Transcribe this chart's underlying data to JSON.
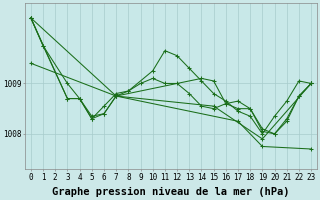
{
  "background_color": "#cce8e8",
  "plot_bg_color": "#c8e8e8",
  "grid_color": "#a8cccc",
  "line_color": "#1a6e1a",
  "xlabel": "Graphe pression niveau de la mer (hPa)",
  "xlabel_fontsize": 7.5,
  "ylabel_ticks": [
    1008.0,
    1009.0
  ],
  "xlim": [
    -0.5,
    23.5
  ],
  "ylim": [
    1007.3,
    1010.6
  ],
  "ytick_labels": [
    "1008",
    "1009"
  ],
  "xtick_labels": [
    "0",
    "1",
    "2",
    "3",
    "4",
    "5",
    "6",
    "7",
    "8",
    "9",
    "10",
    "11",
    "12",
    "13",
    "14",
    "15",
    "16",
    "17",
    "18",
    "19",
    "20",
    "21",
    "22",
    "23"
  ],
  "series": [
    {
      "x": [
        0,
        7,
        17,
        19,
        23
      ],
      "y": [
        1010.3,
        1008.75,
        1008.25,
        1007.75,
        1007.7
      ]
    },
    {
      "x": [
        0,
        7,
        15,
        19,
        23
      ],
      "y": [
        1009.4,
        1008.75,
        1008.55,
        1007.9,
        1009.0
      ]
    },
    {
      "x": [
        0,
        1,
        3,
        4,
        5,
        6,
        7,
        8,
        10,
        11,
        12,
        13,
        14,
        15,
        16,
        17,
        18,
        19,
        20,
        21,
        22,
        23
      ],
      "y": [
        1010.3,
        1009.75,
        1009.0,
        1008.7,
        1008.35,
        1008.4,
        1008.75,
        1008.85,
        1009.25,
        1009.65,
        1009.55,
        1009.3,
        1009.05,
        1008.8,
        1008.65,
        1008.45,
        1008.35,
        1008.0,
        1008.35,
        1008.65,
        1009.05,
        1009.0
      ]
    },
    {
      "x": [
        0,
        1,
        3,
        4,
        5,
        6,
        7,
        8,
        9,
        10,
        11,
        12,
        13,
        14,
        15,
        16,
        17,
        18,
        19,
        20,
        21,
        22,
        23
      ],
      "y": [
        1010.3,
        1009.75,
        1008.7,
        1008.7,
        1008.3,
        1008.55,
        1008.8,
        1008.85,
        1009.0,
        1009.1,
        1009.0,
        1009.0,
        1008.8,
        1008.55,
        1008.5,
        1008.6,
        1008.65,
        1008.5,
        1008.1,
        1008.0,
        1008.25,
        1008.75,
        1009.0
      ]
    },
    {
      "x": [
        0,
        3,
        4,
        5,
        6,
        7,
        14,
        15,
        16,
        17,
        18,
        19,
        20,
        21,
        22,
        23
      ],
      "y": [
        1010.3,
        1008.7,
        1008.7,
        1008.3,
        1008.4,
        1008.75,
        1009.1,
        1009.05,
        1008.6,
        1008.5,
        1008.5,
        1008.05,
        1008.0,
        1008.3,
        1008.75,
        1009.0
      ]
    }
  ],
  "tick_fontsize": 5.5,
  "figsize": [
    3.2,
    2.0
  ],
  "dpi": 100
}
